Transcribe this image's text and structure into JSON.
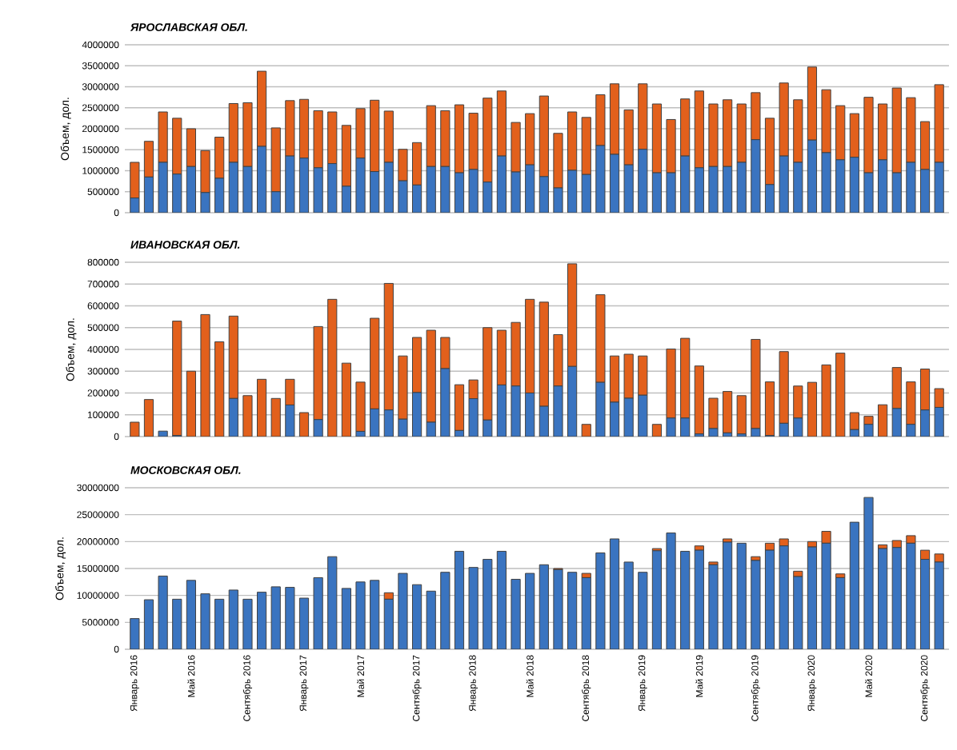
{
  "chart_data": [
    {
      "type": "bar",
      "stacked": true,
      "title": "ЯРОСЛАВСКАЯ ОБЛ.",
      "ylabel": "Объем, дол.",
      "grid": "y",
      "tick_labels": "y",
      "categories": [
        null,
        null,
        null,
        null,
        null,
        null,
        null,
        null,
        null,
        null,
        null,
        null,
        null,
        null,
        null,
        null,
        null,
        null,
        null,
        null,
        null,
        null,
        null,
        null,
        null,
        null,
        null,
        null,
        null,
        null,
        null,
        null,
        null,
        null,
        null,
        null,
        null,
        null,
        null,
        null,
        null,
        null,
        null,
        null,
        null,
        null,
        null,
        null,
        null,
        null,
        null,
        null,
        null,
        null,
        null,
        null,
        null,
        null
      ],
      "ylim": [
        0,
        4000000
      ],
      "yticks": [
        0,
        500000,
        1000000,
        1500000,
        2000000,
        2500000,
        3000000,
        3500000,
        4000000
      ],
      "series": [
        {
          "color": "#3a74c0",
          "values": [
            350000,
            850000,
            1200000,
            920000,
            1100000,
            480000,
            820000,
            1200000,
            1100000,
            1580000,
            500000,
            1350000,
            1300000,
            1070000,
            1170000,
            630000,
            1300000,
            980000,
            1200000,
            760000,
            660000,
            1100000,
            1100000,
            950000,
            1030000,
            730000,
            1350000,
            970000,
            1140000,
            860000,
            590000,
            1010000,
            910000,
            1600000,
            1390000,
            1140000,
            1510000,
            950000,
            950000,
            1350000,
            1070000,
            1100000,
            1100000,
            1200000,
            1740000,
            670000,
            1350000,
            1200000,
            1730000,
            1430000,
            1260000,
            1320000,
            950000,
            1260000,
            950000,
            1200000,
            1030000,
            1200000
          ]
        },
        {
          "color": "#e2601c",
          "values": [
            850000,
            850000,
            1200000,
            1330000,
            900000,
            1000000,
            980000,
            1400000,
            1520000,
            1790000,
            1520000,
            1320000,
            1400000,
            1360000,
            1230000,
            1450000,
            1180000,
            1700000,
            1220000,
            750000,
            1010000,
            1450000,
            1330000,
            1620000,
            1340000,
            2000000,
            1550000,
            1180000,
            1220000,
            1920000,
            1300000,
            1390000,
            1360000,
            1210000,
            1680000,
            1310000,
            1560000,
            1640000,
            1270000,
            1360000,
            1830000,
            1490000,
            1590000,
            1390000,
            1120000,
            1580000,
            1740000,
            1490000,
            1740000,
            1500000,
            1290000,
            1040000,
            1800000,
            1330000,
            2020000,
            1540000,
            1140000,
            1850000
          ]
        }
      ]
    },
    {
      "type": "bar",
      "stacked": true,
      "title": "ИВАНОВСКАЯ ОБЛ.",
      "ylabel": "Объем, дол.",
      "grid": "y",
      "tick_labels": "y",
      "categories": [
        null,
        null,
        null,
        null,
        null,
        null,
        null,
        null,
        null,
        null,
        null,
        null,
        null,
        null,
        null,
        null,
        null,
        null,
        null,
        null,
        null,
        null,
        null,
        null,
        null,
        null,
        null,
        null,
        null,
        null,
        null,
        null,
        null,
        null,
        null,
        null,
        null,
        null,
        null,
        null,
        null,
        null,
        null,
        null,
        null,
        null,
        null,
        null,
        null,
        null,
        null,
        null,
        null,
        null,
        null,
        null,
        null,
        null
      ],
      "ylim": [
        0,
        800000
      ],
      "yticks": [
        0,
        100000,
        200000,
        300000,
        400000,
        500000,
        600000,
        700000,
        800000
      ],
      "series": [
        {
          "color": "#3a74c0",
          "values": [
            0,
            0,
            25000,
            5000,
            0,
            0,
            0,
            175000,
            0,
            0,
            0,
            145000,
            0,
            78000,
            0,
            0,
            24000,
            127000,
            122000,
            80000,
            202000,
            66000,
            312000,
            28000,
            174000,
            76000,
            237000,
            232000,
            200000,
            139000,
            232000,
            322000,
            0,
            249000,
            158000,
            176000,
            190000,
            0,
            85000,
            85000,
            12000,
            37000,
            17000,
            12000,
            37000,
            5000,
            61000,
            85000,
            0,
            0,
            0,
            32000,
            56000,
            0,
            129000,
            56000,
            122000,
            134000
          ]
        },
        {
          "color": "#e2601c",
          "values": [
            66000,
            170000,
            0,
            525000,
            300000,
            560000,
            435000,
            378000,
            188000,
            263000,
            175000,
            118000,
            110000,
            427000,
            630000,
            337000,
            226000,
            416000,
            581000,
            290000,
            253000,
            422000,
            143000,
            210000,
            86000,
            424000,
            251000,
            292000,
            430000,
            478000,
            236000,
            471000,
            56000,
            402000,
            212000,
            202000,
            180000,
            56000,
            317000,
            366000,
            312000,
            139000,
            190000,
            176000,
            409000,
            246000,
            329000,
            147000,
            249000,
            329000,
            383000,
            78000,
            37000,
            146000,
            188000,
            195000,
            188000,
            86000
          ]
        }
      ]
    },
    {
      "type": "bar",
      "stacked": true,
      "title": "МОСКОВСКАЯ ОБЛ.",
      "ylabel": "Объем, дол.",
      "grid": "y",
      "categories": [
        "Январь 2016",
        null,
        null,
        null,
        "Май 2016",
        null,
        null,
        null,
        "Сентябрь 2016",
        null,
        null,
        null,
        "Январь 2017",
        null,
        null,
        null,
        "Май 2017",
        null,
        null,
        null,
        "Сентябрь 2017",
        null,
        null,
        null,
        "Январь 2018",
        null,
        null,
        null,
        "Май 2018",
        null,
        null,
        null,
        "Сентябрь 2018",
        null,
        null,
        null,
        "Январь 2019",
        null,
        null,
        null,
        "Май 2019",
        null,
        null,
        null,
        "Сентябрь 2019",
        null,
        null,
        null,
        "Январь 2020",
        null,
        null,
        null,
        "Май 2020",
        null,
        null,
        null,
        "Сентябрь 2020",
        null
      ],
      "ylim": [
        0,
        30000000
      ],
      "yticks": [
        0,
        5000000,
        10000000,
        15000000,
        20000000,
        25000000,
        30000000
      ],
      "series": [
        {
          "color": "#3a74c0",
          "values": [
            5700000,
            9200000,
            13600000,
            9300000,
            12800000,
            10300000,
            9300000,
            11000000,
            9300000,
            10600000,
            11600000,
            11500000,
            9500000,
            13300000,
            17200000,
            11300000,
            12500000,
            12800000,
            9300000,
            14100000,
            12000000,
            10800000,
            14300000,
            18200000,
            15200000,
            16700000,
            18200000,
            13000000,
            14100000,
            15700000,
            14800000,
            14300000,
            13300000,
            17900000,
            20500000,
            16200000,
            14300000,
            18300000,
            21600000,
            18200000,
            18400000,
            15700000,
            19900000,
            19700000,
            16500000,
            18400000,
            19200000,
            13500000,
            19000000,
            19700000,
            13300000,
            23600000,
            28200000,
            18700000,
            18900000,
            19700000,
            16700000,
            16200000
          ]
        },
        {
          "color": "#e2601c",
          "values": [
            0,
            0,
            0,
            0,
            0,
            0,
            0,
            0,
            0,
            0,
            0,
            0,
            0,
            0,
            0,
            0,
            0,
            0,
            1200000,
            0,
            0,
            0,
            0,
            0,
            0,
            0,
            0,
            0,
            0,
            0,
            200000,
            0,
            800000,
            0,
            0,
            0,
            0,
            400000,
            0,
            0,
            800000,
            500000,
            600000,
            0,
            700000,
            1300000,
            1300000,
            1000000,
            1000000,
            2200000,
            700000,
            0,
            0,
            700000,
            1300000,
            1400000,
            1700000,
            1500000
          ]
        }
      ]
    }
  ]
}
